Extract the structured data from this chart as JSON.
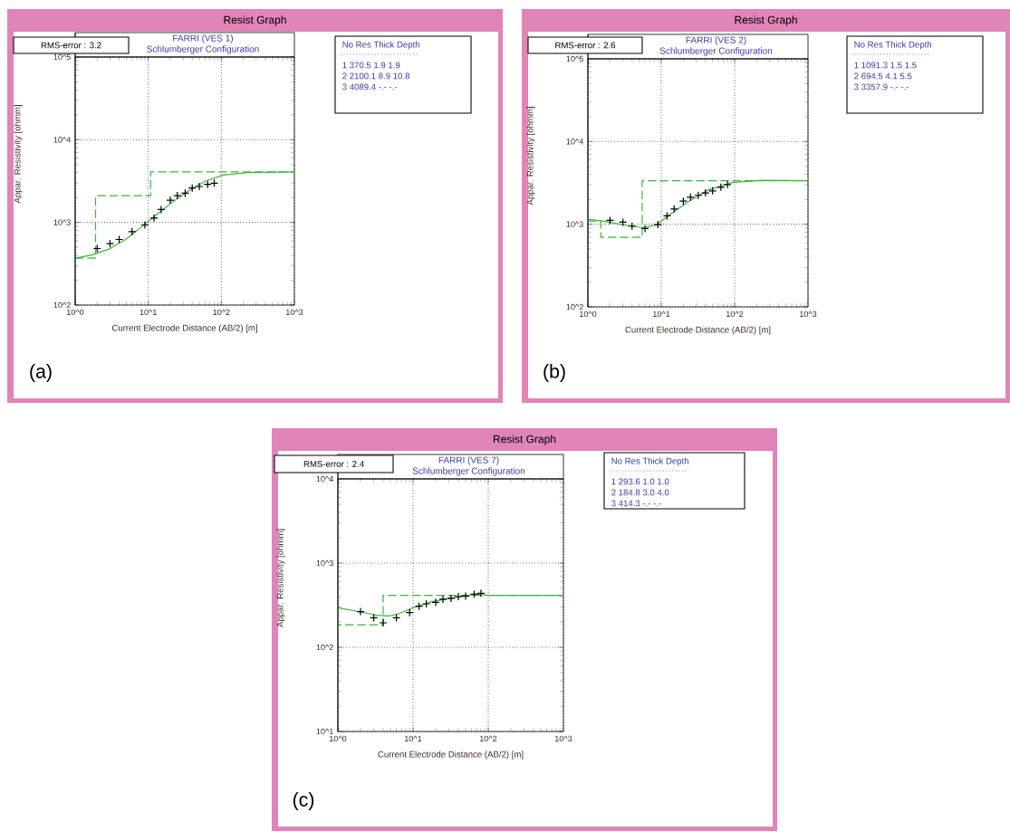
{
  "chart_data": [
    {
      "type": "scatter",
      "title": "FARRI (VES 1)",
      "subtitle": "Schlumberger Configuration",
      "xlabel": "Current Electrode Distance (AB/2) [m]",
      "ylabel": "Appar. Resistivity [ohmm]",
      "annotations": [
        "Resist Graph",
        "RMS-error :  3.2",
        "No   Res  Thick  Depth",
        "1  370.5   1.9   1.9",
        "2 2100.1   8.9   10.8",
        "3 4089.4   -.-   -.-",
        "(a)"
      ],
      "log": "xy",
      "grid": true,
      "xlim": [
        1,
        1000
      ],
      "ylim": [
        100,
        100000
      ],
      "xticks": [
        {
          "value": 1,
          "label": "10^0"
        },
        {
          "value": 10,
          "label": "10^1"
        },
        {
          "value": 100,
          "label": "10^2"
        },
        {
          "value": 1000,
          "label": "10^3"
        }
      ],
      "yticks": [
        {
          "value": 100,
          "label": "10^2"
        },
        {
          "value": 1000,
          "label": "10^3"
        },
        {
          "value": 10000,
          "label": "10^4"
        },
        {
          "value": 100000,
          "label": "10^5"
        }
      ],
      "series": [
        {
          "marker": "cross",
          "color": "#000000",
          "x": [
            2,
            3,
            4,
            6,
            9,
            12,
            15,
            20,
            25,
            32,
            40,
            50,
            65,
            80
          ],
          "values": [
            483,
            552,
            622,
            774,
            931,
            1130,
            1432,
            1858,
            2109,
            2256,
            2606,
            2718,
            2883,
            2980
          ]
        },
        {
          "type": "line",
          "color": "#3cb43c",
          "x": [
            1,
            1.64,
            2.9,
            5.1,
            8.2,
            13.2,
            21.3,
            34.2,
            60.6,
            106,
            230,
            1000
          ],
          "values": [
            369,
            401,
            475,
            638,
            893,
            1250,
            1753,
            2355,
            3162,
            3740,
            4000,
            4089
          ]
        },
        {
          "type": "line",
          "line_style": "dashed",
          "color": "#3cb43c",
          "x": [
            1,
            1.9,
            1.9,
            10.8,
            10.8,
            1000
          ],
          "values": [
            370.5,
            370.5,
            2100.1,
            2100.1,
            4089.4,
            4089.4
          ]
        }
      ]
    },
    {
      "type": "scatter",
      "title": "FARRI (VES 2)",
      "subtitle": "Schlumberger Configuration",
      "xlabel": "Current Electrode Distance (AB/2) [m]",
      "ylabel": "Appar. Resistivity [ohmm]",
      "annotations": [
        "Resist Graph",
        "RMS-error :  2.6",
        "No   Res  Thick  Depth",
        "1 1091.3   1.5   1.5",
        "2  694.5   4.1   5.5",
        "3 3357.9   -.-   -.-",
        "(b)"
      ],
      "log": "xy",
      "grid": true,
      "xlim": [
        1,
        1000
      ],
      "ylim": [
        100,
        100000
      ],
      "xticks": [
        {
          "value": 1,
          "label": "10^0"
        },
        {
          "value": 10,
          "label": "10^1"
        },
        {
          "value": 100,
          "label": "10^2"
        },
        {
          "value": 1000,
          "label": "10^3"
        }
      ],
      "yticks": [
        {
          "value": 100,
          "label": "10^2"
        },
        {
          "value": 1000,
          "label": "10^3"
        },
        {
          "value": 10000,
          "label": "10^4"
        },
        {
          "value": 100000,
          "label": "10^5"
        }
      ],
      "series": [
        {
          "marker": "cross",
          "color": "#000000",
          "x": [
            2,
            3,
            4,
            6,
            9,
            12,
            15,
            20,
            25,
            32,
            40,
            50,
            65,
            80
          ],
          "values": [
            1112,
            1057,
            948,
            887,
            989,
            1262,
            1528,
            1901,
            2123,
            2234,
            2388,
            2531,
            2799,
            3020
          ]
        },
        {
          "type": "line",
          "color": "#3cb43c",
          "x": [
            1,
            1.5,
            2.1,
            3.7,
            5.95,
            8.7,
            13.9,
            24.7,
            43.6,
            93,
            240,
            1000
          ],
          "values": [
            1151,
            1100,
            1047,
            948,
            908,
            989,
            1358,
            1936,
            2594,
            3199,
            3400,
            3358
          ]
        },
        {
          "type": "line",
          "line_style": "dashed",
          "color": "#3cb43c",
          "x": [
            1,
            1.5,
            1.5,
            5.5,
            5.5,
            1000
          ],
          "values": [
            1091.3,
            1091.3,
            694.5,
            694.5,
            3357.9,
            3357.9
          ]
        }
      ]
    },
    {
      "type": "scatter",
      "title": "FARRI (VES 7)",
      "subtitle": "Schlumberger Configuration",
      "xlabel": "Current Electrode Distance (AB/2) [m]",
      "ylabel": "Appar. Resistivity [ohmm]",
      "annotations": [
        "Resist Graph",
        "RMS-error :  2.4",
        "No   Res  Thick  Depth",
        "1  293.6   1.0   1.0",
        "2  184.8   3.0   4.0",
        "3  414.3   -.-   -.-",
        "(c)"
      ],
      "log": "xy",
      "grid": true,
      "xlim": [
        1,
        1000
      ],
      "ylim": [
        10,
        10000
      ],
      "xticks": [
        {
          "value": 1,
          "label": "10^0"
        },
        {
          "value": 10,
          "label": "10^1"
        },
        {
          "value": 100,
          "label": "10^2"
        },
        {
          "value": 1000,
          "label": "10^3"
        }
      ],
      "yticks": [
        {
          "value": 10,
          "label": "10^1"
        },
        {
          "value": 100,
          "label": "10^2"
        },
        {
          "value": 1000,
          "label": "10^3"
        },
        {
          "value": 10000,
          "label": "10^4"
        }
      ],
      "series": [
        {
          "marker": "cross",
          "color": "#000000",
          "x": [
            2,
            3,
            4,
            6,
            9,
            12,
            15,
            20,
            25,
            32,
            40,
            50,
            65,
            80
          ],
          "values": [
            265,
            224,
            195,
            224,
            258,
            307,
            328,
            342,
            372,
            381,
            400,
            406,
            427,
            438
          ]
        },
        {
          "type": "line",
          "color": "#3cb43c",
          "x": [
            1,
            2.1,
            3.3,
            4.8,
            6.4,
            10.1,
            17.7,
            33.8,
            71,
            103,
            1000
          ],
          "values": [
            295,
            261,
            240,
            236,
            250,
            295,
            348,
            387,
            428,
            414,
            414
          ]
        },
        {
          "type": "line",
          "line_style": "dashed",
          "color": "#3cb43c",
          "x": [
            1,
            1,
            4,
            4,
            1000
          ],
          "values": [
            293.6,
            184.8,
            184.8,
            414.3,
            414.3
          ]
        }
      ]
    }
  ]
}
